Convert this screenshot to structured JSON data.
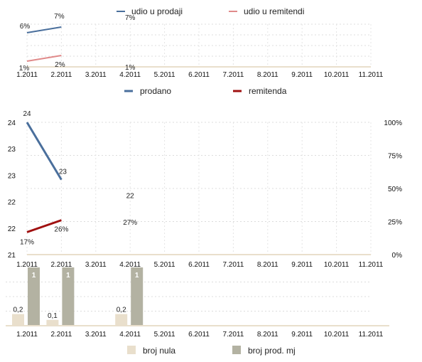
{
  "chart_data": [
    {
      "type": "line",
      "categories": [
        "1.2011",
        "2.2011",
        "3.2011",
        "4.2011",
        "5.2011",
        "6.2011",
        "7.2011",
        "8.2011",
        "9.2011",
        "10.2011",
        "11.2011"
      ],
      "series": [
        {
          "name": "udio u prodaji",
          "color": "#4a6f9c",
          "values": [
            6,
            7,
            null,
            null,
            null,
            null,
            null,
            null,
            null,
            null,
            null
          ],
          "labels": [
            "6%",
            "7%",
            null,
            null,
            null,
            null,
            null,
            null,
            null,
            null,
            null
          ]
        },
        {
          "name": "udio u remitendi",
          "color": "#e08a8a",
          "values": [
            1,
            2,
            null,
            null,
            null,
            null,
            null,
            null,
            null,
            null,
            null
          ],
          "labels": [
            "1%",
            "2%",
            null,
            null,
            null,
            null,
            null,
            null,
            null,
            null,
            null
          ]
        }
      ],
      "extra_labels": [
        {
          "category": "4.2011",
          "text": "7%",
          "value": 7
        },
        {
          "category": "4.2011",
          "text": "1%",
          "value": 1
        }
      ],
      "ylim": [
        0,
        7.5
      ],
      "grid": true,
      "legend": "top"
    },
    {
      "type": "line",
      "categories": [
        "1.2011",
        "2.2011",
        "3.2011",
        "4.2011",
        "5.2011",
        "6.2011",
        "7.2011",
        "8.2011",
        "9.2011",
        "10.2011",
        "11.2011"
      ],
      "series": [
        {
          "name": "prodano",
          "color": "#4a6f9c",
          "axis": "left",
          "values": [
            24,
            22.7,
            null,
            null,
            null,
            null,
            null,
            null,
            null,
            null,
            null
          ],
          "labels": [
            "24",
            "23",
            null,
            null,
            null,
            null,
            null,
            null,
            null,
            null,
            null
          ]
        },
        {
          "name": "remitenda",
          "color": "#a01010",
          "axis": "right",
          "values": [
            17,
            26,
            null,
            null,
            null,
            null,
            null,
            null,
            null,
            null,
            null
          ],
          "labels": [
            "17%",
            "26%",
            null,
            null,
            null,
            null,
            null,
            null,
            null,
            null,
            null
          ]
        }
      ],
      "extra_labels": [
        {
          "category": "4.2011",
          "text": "22",
          "axis": "left",
          "value": 22.35
        },
        {
          "category": "4.2011",
          "text": "27%",
          "axis": "right",
          "value": 27
        }
      ],
      "left_ticks": [
        "21",
        "22",
        "22",
        "23",
        "23",
        "24"
      ],
      "left_ylim": [
        21,
        24
      ],
      "right_ticks": [
        "0%",
        "25%",
        "50%",
        "75%",
        "100%"
      ],
      "right_ylim": [
        0,
        100
      ],
      "grid": true,
      "legend": "top"
    },
    {
      "type": "bar",
      "categories": [
        "1.2011",
        "2.2011",
        "3.2011",
        "4.2011",
        "5.2011",
        "6.2011",
        "7.2011",
        "8.2011",
        "9.2011",
        "10.2011",
        "11.2011"
      ],
      "series": [
        {
          "name": "broj nula",
          "color": "#e9dfcc",
          "values": [
            0.2,
            0.1,
            null,
            0.2,
            null,
            null,
            null,
            null,
            null,
            null,
            null
          ],
          "labels": [
            "0,2",
            "0,1",
            null,
            "0,2",
            null,
            null,
            null,
            null,
            null,
            null,
            null
          ]
        },
        {
          "name": "broj prod. mj",
          "color": "#b3b2a2",
          "values": [
            1,
            1,
            null,
            1,
            null,
            null,
            null,
            null,
            null,
            null,
            null
          ],
          "labels": [
            "1",
            "1",
            null,
            "1",
            null,
            null,
            null,
            null,
            null,
            null,
            null
          ]
        }
      ],
      "ylim": [
        0,
        1
      ],
      "grid": true,
      "legend": "bottom"
    }
  ]
}
